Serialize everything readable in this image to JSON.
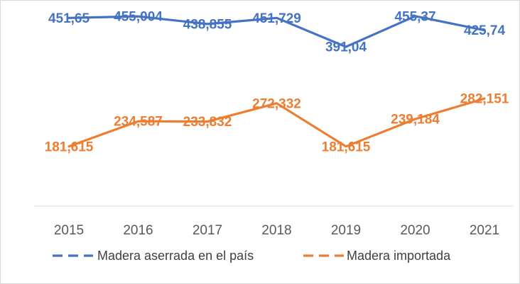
{
  "chart_data": {
    "type": "line",
    "title": "",
    "xlabel": "",
    "ylabel": "",
    "ylim": [
      150,
      470
    ],
    "grid": false,
    "legend_position": "bottom",
    "categories": [
      "2015",
      "2016",
      "2017",
      "2018",
      "2019",
      "2020",
      "2021"
    ],
    "series": [
      {
        "name": "Madera aserrada en el país",
        "color": "#4472C4",
        "values": [
          451.65,
          455.004,
          438.855,
          451.729,
          391.04,
          455.37,
          425.74
        ],
        "labels": [
          "451,65",
          "455,004",
          "438,855",
          "451,729",
          "391,04",
          "455,37",
          "425,74"
        ]
      },
      {
        "name": "Madera importada",
        "color": "#ED7D31",
        "values": [
          181.615,
          234.587,
          233.832,
          272.332,
          181.615,
          239.184,
          282.151
        ],
        "labels": [
          "181,615",
          "234,587",
          "233,832",
          "272,332",
          "181,615",
          "239,184",
          "282,151"
        ]
      }
    ]
  }
}
